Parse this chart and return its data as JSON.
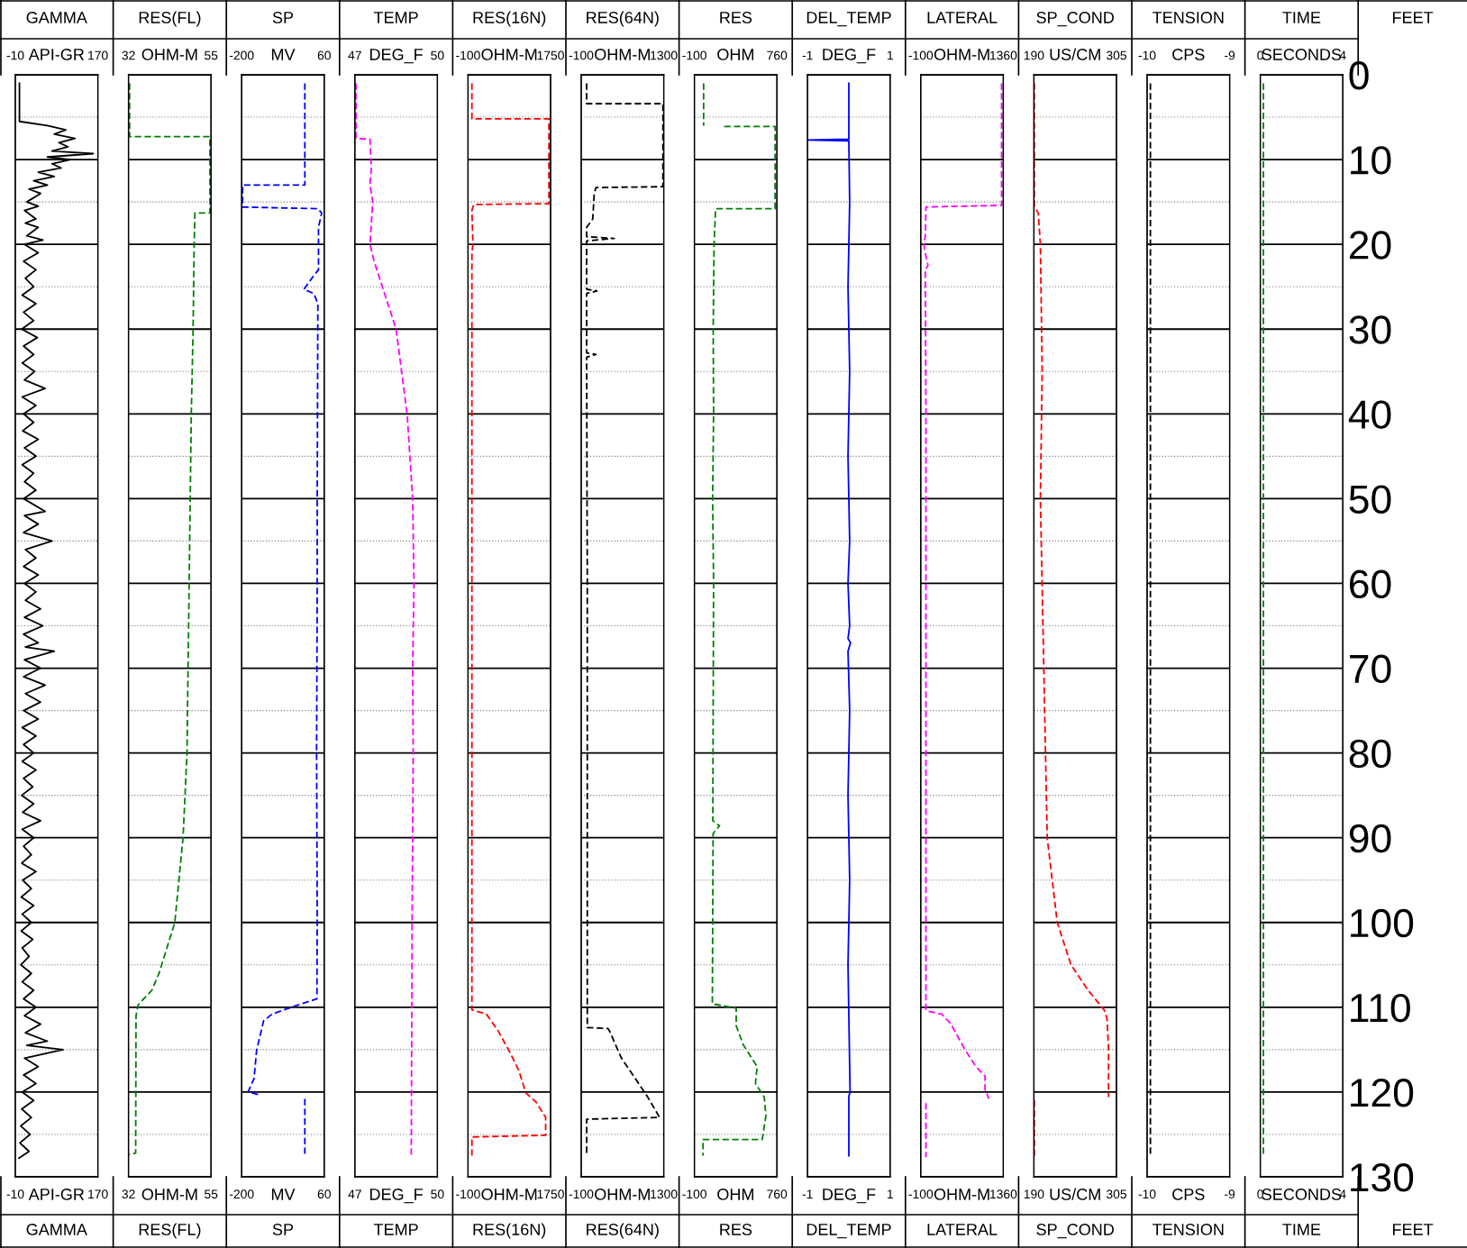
{
  "chart_data": [
    {
      "type": "line",
      "title": "GAMMA",
      "x2label": "API-GR",
      "xlabel": "API-GR",
      "annotations": [
        "GAMMA"
      ],
      "xlim": [
        -10,
        170
      ],
      "xticks": [
        -10,
        170
      ],
      "x2lim": [
        -10,
        170
      ],
      "x2ticks": [
        -10,
        170
      ],
      "ylim": [
        130,
        0
      ],
      "yticks": [
        0,
        {
          "value": 5,
          "label": null
        },
        10,
        {
          "value": 15,
          "label": null
        },
        20,
        {
          "value": 25,
          "label": null
        },
        30,
        {
          "value": 35,
          "label": null
        },
        40,
        {
          "value": 45,
          "label": null
        },
        50,
        {
          "value": 55,
          "label": null
        },
        60,
        {
          "value": 65,
          "label": null
        },
        70,
        {
          "value": 75,
          "label": null
        },
        80,
        {
          "value": 85,
          "label": null
        },
        90,
        {
          "value": 95,
          "label": null
        },
        100,
        {
          "value": 105,
          "label": null
        },
        110,
        {
          "value": 115,
          "label": null
        },
        120,
        {
          "value": 125,
          "label": null
        },
        130
      ],
      "tick_labels": "x",
      "grid": "y",
      "series": [
        {
          "color": "#000000",
          "line_style": "solid",
          "x": [
            -1,
            -1,
            60,
            100,
            75,
            120,
            85,
            105,
            70,
            160,
            60,
            110,
            70,
            90,
            40,
            75,
            30,
            60,
            20,
            45,
            15,
            40,
            10,
            35,
            12,
            40,
            15,
            50,
            10,
            40,
            8,
            35,
            12,
            30,
            5,
            35,
            8,
            30,
            4,
            38,
            8,
            30,
            5,
            32,
            10,
            55,
            5,
            35,
            8,
            30,
            6,
            40,
            10,
            35,
            5,
            30,
            10,
            35,
            8,
            55,
            10,
            40,
            8,
            70,
            12,
            35,
            8,
            40,
            10,
            35,
            12,
            45,
            10,
            50,
            8,
            40,
            12,
            75,
            10,
            45,
            8,
            55,
            12,
            45,
            8,
            40,
            5,
            35,
            8,
            30,
            5,
            35,
            8,
            28,
            4,
            30,
            6,
            45,
            5,
            30,
            8,
            25,
            4,
            35,
            6,
            25,
            3,
            30,
            5,
            25,
            3,
            28,
            5,
            20,
            2,
            25,
            5,
            30,
            8,
            35,
            10,
            45,
            12,
            60,
            15,
            94,
            10,
            40,
            8,
            35,
            5,
            30,
            4,
            25,
            2,
            22,
            0,
            20,
            -2
          ],
          "values": [
            1,
            5.5,
            6,
            6.5,
            7,
            7.5,
            8,
            8.5,
            9,
            9.3,
            9.7,
            10,
            10.5,
            11,
            11.5,
            12,
            12.5,
            13,
            13.5,
            14,
            15,
            15.5,
            16,
            17,
            17.5,
            18,
            19,
            19.5,
            20,
            21,
            22,
            23,
            24,
            25,
            26,
            27,
            28,
            29,
            30,
            31,
            32,
            33,
            34,
            35,
            36,
            37,
            38,
            39,
            40,
            41,
            42,
            43,
            44,
            45,
            46,
            47,
            48,
            49,
            50,
            51.5,
            52,
            53,
            54,
            55,
            56,
            57,
            58,
            59,
            60,
            61,
            62,
            63,
            64,
            65,
            66,
            67,
            67.5,
            68,
            69,
            70,
            71,
            72,
            73,
            74,
            75,
            76,
            77,
            78,
            79,
            80,
            81,
            82,
            83,
            84,
            85,
            86,
            87,
            88,
            89,
            90,
            91,
            92,
            93,
            94,
            95,
            96,
            97,
            98,
            99,
            100,
            101,
            102,
            103,
            104,
            105,
            106,
            107,
            108,
            109,
            110,
            111,
            112,
            113,
            114,
            114.5,
            115,
            116,
            117,
            118,
            119,
            120,
            121,
            122,
            123,
            124,
            125,
            126,
            127,
            127.8
          ]
        }
      ]
    },
    {
      "type": "line",
      "title": "RES(FL)",
      "x2label": "OHM-M",
      "xlabel": "OHM-M",
      "annotations": [
        "RES(FL)"
      ],
      "xlim": [
        32,
        55
      ],
      "xticks": [
        32,
        55
      ],
      "x2lim": [
        32,
        55
      ],
      "x2ticks": [
        32,
        55
      ],
      "ylim": [
        130,
        0
      ],
      "yticks": [
        0,
        {
          "value": 5,
          "label": null
        },
        10,
        {
          "value": 15,
          "label": null
        },
        20,
        {
          "value": 25,
          "label": null
        },
        30,
        {
          "value": 35,
          "label": null
        },
        40,
        {
          "value": 45,
          "label": null
        },
        50,
        {
          "value": 55,
          "label": null
        },
        60,
        {
          "value": 65,
          "label": null
        },
        70,
        {
          "value": 75,
          "label": null
        },
        80,
        {
          "value": 85,
          "label": null
        },
        90,
        {
          "value": 95,
          "label": null
        },
        100,
        {
          "value": 105,
          "label": null
        },
        110,
        {
          "value": 115,
          "label": null
        },
        120,
        {
          "value": 125,
          "label": null
        },
        130
      ],
      "tick_labels": "x",
      "grid": "y",
      "series": [
        {
          "color": "#008000",
          "line_style": "dashed",
          "x": [
            32.3,
            32.3,
            54.7,
            54.7,
            50.5,
            50.3,
            50.0,
            49.5,
            48.6,
            48.3,
            47.2,
            44.9,
            40.5,
            38.5,
            34.7,
            34.1,
            34.0,
            32.0
          ],
          "values": [
            1,
            7.3,
            7.3,
            16.3,
            16.3,
            20,
            30,
            40,
            70,
            80,
            90,
            100,
            106,
            108,
            109.7,
            111,
            127.2,
            127.4
          ]
        }
      ]
    },
    {
      "type": "line",
      "title": "SP",
      "x2label": "MV",
      "xlabel": "MV",
      "annotations": [
        "SP"
      ],
      "xlim": [
        -200,
        60
      ],
      "xticks": [
        -200,
        60
      ],
      "x2lim": [
        -200,
        60
      ],
      "x2ticks": [
        -200,
        60
      ],
      "ylim": [
        130,
        0
      ],
      "yticks": [
        0,
        {
          "value": 5,
          "label": null
        },
        10,
        {
          "value": 15,
          "label": null
        },
        20,
        {
          "value": 25,
          "label": null
        },
        30,
        {
          "value": 35,
          "label": null
        },
        40,
        {
          "value": 45,
          "label": null
        },
        50,
        {
          "value": 55,
          "label": null
        },
        60,
        {
          "value": 65,
          "label": null
        },
        70,
        {
          "value": 75,
          "label": null
        },
        80,
        {
          "value": 85,
          "label": null
        },
        90,
        {
          "value": 95,
          "label": null
        },
        100,
        {
          "value": 105,
          "label": null
        },
        110,
        {
          "value": 115,
          "label": null
        },
        120,
        {
          "value": 125,
          "label": null
        },
        130
      ],
      "tick_labels": "x",
      "grid": "y",
      "series": [
        {
          "color": "#0000ff",
          "line_style": "dashed",
          "x": [
            -1,
            -1,
            -197,
            -197,
            39,
            52,
            42,
            42,
            27,
            -4,
            27,
            40,
            38,
            38,
            36,
            38,
            37,
            -28,
            -104,
            -131,
            -153,
            -161,
            -180,
            -148,
            null,
            -1,
            -1
          ],
          "values": [
            1,
            13.0,
            13.0,
            15.6,
            15.8,
            16.3,
            18,
            23,
            23.7,
            25.3,
            25.8,
            27,
            50,
            60,
            80,
            100,
            109,
            109.8,
            110.8,
            111.6,
            115.1,
            118.4,
            120,
            120.3,
            null,
            120.8,
            127.3
          ]
        }
      ]
    },
    {
      "type": "line",
      "title": "TEMP",
      "x2label": "DEG_F",
      "xlabel": "DEG_F",
      "annotations": [
        "TEMP"
      ],
      "xlim": [
        47,
        50
      ],
      "xticks": [
        47,
        50
      ],
      "x2lim": [
        47,
        50
      ],
      "x2ticks": [
        47,
        50
      ],
      "ylim": [
        130,
        0
      ],
      "yticks": [
        0,
        {
          "value": 5,
          "label": null
        },
        10,
        {
          "value": 15,
          "label": null
        },
        20,
        {
          "value": 25,
          "label": null
        },
        30,
        {
          "value": 35,
          "label": null
        },
        40,
        {
          "value": 45,
          "label": null
        },
        50,
        {
          "value": 55,
          "label": null
        },
        60,
        {
          "value": 65,
          "label": null
        },
        70,
        {
          "value": 75,
          "label": null
        },
        80,
        {
          "value": 85,
          "label": null
        },
        90,
        {
          "value": 95,
          "label": null
        },
        100,
        {
          "value": 105,
          "label": null
        },
        110,
        {
          "value": 115,
          "label": null
        },
        120,
        {
          "value": 125,
          "label": null
        },
        130
      ],
      "tick_labels": "x",
      "grid": "y",
      "series": [
        {
          "color": "#ff00ff",
          "line_style": "dashed",
          "x": [
            47.04,
            47.04,
            47.55,
            47.6,
            47.55,
            47.65,
            47.55,
            47.7,
            48.0,
            48.3,
            48.5,
            48.7,
            48.9,
            49.0,
            49.1,
            49.15,
            49.1,
            49.12,
            49.1,
            49.08,
            49.07,
            49.05
          ],
          "values": [
            1,
            7.5,
            7.6,
            11,
            13,
            15,
            20,
            22,
            25,
            28,
            30,
            35,
            40,
            45,
            50,
            60,
            70,
            80,
            90,
            100,
            110,
            127.5
          ]
        }
      ]
    },
    {
      "type": "line",
      "title": "RES(16N)",
      "x2label": "OHM-M",
      "xlabel": "OHM-M",
      "annotations": [
        "RES(16N)"
      ],
      "xlim": [
        -100,
        1750
      ],
      "xticks": [
        -100,
        1750
      ],
      "x2lim": [
        -100,
        1750
      ],
      "x2ticks": [
        -100,
        1750
      ],
      "ylim": [
        130,
        0
      ],
      "yticks": [
        0,
        {
          "value": 5,
          "label": null
        },
        10,
        {
          "value": 15,
          "label": null
        },
        20,
        {
          "value": 25,
          "label": null
        },
        30,
        {
          "value": 35,
          "label": null
        },
        40,
        {
          "value": 45,
          "label": null
        },
        50,
        {
          "value": 55,
          "label": null
        },
        60,
        {
          "value": 65,
          "label": null
        },
        70,
        {
          "value": 75,
          "label": null
        },
        80,
        {
          "value": 85,
          "label": null
        },
        90,
        {
          "value": 95,
          "label": null
        },
        100,
        {
          "value": 105,
          "label": null
        },
        110,
        {
          "value": 115,
          "label": null
        },
        120,
        {
          "value": 125,
          "label": null
        },
        130
      ],
      "tick_labels": "x",
      "grid": "y",
      "series": [
        {
          "color": "#ff0000",
          "line_style": "dashed",
          "x": [
            -13,
            -13,
            1713,
            1713,
            26,
            -13,
            10,
            -13,
            -13,
            -13,
            311,
            577,
            847,
            1042,
            1195,
            1427,
            1640,
            1640,
            -13,
            -13
          ],
          "values": [
            1,
            5.2,
            5.2,
            15.2,
            15.3,
            16,
            20,
            21,
            60,
            110.3,
            110.8,
            112.8,
            115.4,
            117.5,
            120.1,
            121.2,
            123,
            125.1,
            125.3,
            127.5
          ]
        }
      ]
    },
    {
      "type": "line",
      "title": "RES(64N)",
      "x2label": "OHM-M",
      "xlabel": "OHM-M",
      "annotations": [
        "RES(64N)"
      ],
      "xlim": [
        -100,
        1300
      ],
      "xticks": [
        -100,
        1300
      ],
      "x2lim": [
        -100,
        1300
      ],
      "x2ticks": [
        -100,
        1300
      ],
      "ylim": [
        130,
        0
      ],
      "yticks": [
        0,
        {
          "value": 5,
          "label": null
        },
        10,
        {
          "value": 15,
          "label": null
        },
        20,
        {
          "value": 25,
          "label": null
        },
        30,
        {
          "value": 35,
          "label": null
        },
        40,
        {
          "value": 45,
          "label": null
        },
        50,
        {
          "value": 55,
          "label": null
        },
        60,
        {
          "value": 65,
          "label": null
        },
        70,
        {
          "value": 75,
          "label": null
        },
        80,
        {
          "value": 85,
          "label": null
        },
        90,
        {
          "value": 95,
          "label": null
        },
        100,
        {
          "value": 105,
          "label": null
        },
        110,
        {
          "value": 115,
          "label": null
        },
        120,
        {
          "value": 125,
          "label": null
        },
        130
      ],
      "tick_labels": "x",
      "grid": "y",
      "series": [
        {
          "color": "#000000",
          "line_style": "dashed",
          "x": [
            -8,
            -8,
            1286,
            1286,
            150,
            121,
            96,
            -8,
            -8,
            460,
            -8,
            -8,
            166,
            -8,
            -8,
            150,
            -8,
            3,
            3,
            355,
            380,
            582,
            818,
            1020,
            1230,
            -8,
            -8
          ],
          "values": [
            1,
            3.4,
            3.4,
            13.2,
            13.3,
            14,
            17,
            18,
            19.1,
            19.3,
            19.6,
            25.3,
            25.5,
            25.8,
            32.8,
            33,
            33.3,
            60,
            112.4,
            112.5,
            112.8,
            116,
            118.4,
            120.5,
            123,
            123.2,
            127.5
          ]
        }
      ]
    },
    {
      "type": "line",
      "title": "RES",
      "x2label": "OHM",
      "xlabel": "OHM",
      "annotations": [
        "RES"
      ],
      "xlim": [
        -100,
        760
      ],
      "xticks": [
        -100,
        760
      ],
      "x2lim": [
        -100,
        760
      ],
      "x2ticks": [
        -100,
        760
      ],
      "ylim": [
        130,
        0
      ],
      "yticks": [
        0,
        {
          "value": 5,
          "label": null
        },
        10,
        {
          "value": 15,
          "label": null
        },
        20,
        {
          "value": 25,
          "label": null
        },
        30,
        {
          "value": 35,
          "label": null
        },
        40,
        {
          "value": 45,
          "label": null
        },
        50,
        {
          "value": 55,
          "label": null
        },
        60,
        {
          "value": 65,
          "label": null
        },
        70,
        {
          "value": 75,
          "label": null
        },
        80,
        {
          "value": 85,
          "label": null
        },
        90,
        {
          "value": 95,
          "label": null
        },
        100,
        {
          "value": 105,
          "label": null
        },
        110,
        {
          "value": 115,
          "label": null
        },
        120,
        {
          "value": 125,
          "label": null
        },
        130
      ],
      "tick_labels": "x",
      "grid": "y",
      "series": [
        {
          "color": "#008000",
          "line_style": "dashed",
          "x": [
            -4,
            -4,
            null,
            210,
            741,
            741,
            121,
            105,
            96,
            100,
            90,
            100,
            92,
            162,
            95,
            87,
            336,
            336,
            408,
            554,
            536,
            628,
            645,
            607,
            -10,
            -10
          ],
          "values": [
            1,
            6.0,
            null,
            6.1,
            6.1,
            15.8,
            15.8,
            20,
            30,
            40,
            50,
            60,
            88,
            88.6,
            89.5,
            109.6,
            110.1,
            112.2,
            114.4,
            117,
            119,
            120.6,
            122.8,
            125.6,
            125.6,
            127.5
          ]
        }
      ]
    },
    {
      "type": "line",
      "title": "DEL_TEMP",
      "x2label": "DEG_F",
      "xlabel": "DEG_F",
      "annotations": [
        "DEL_TEMP"
      ],
      "xlim": [
        -1,
        1
      ],
      "xticks": [
        -1,
        1
      ],
      "x2lim": [
        -1,
        1
      ],
      "x2ticks": [
        -1,
        1
      ],
      "ylim": [
        130,
        0
      ],
      "yticks": [
        0,
        {
          "value": 5,
          "label": null
        },
        10,
        {
          "value": 15,
          "label": null
        },
        20,
        {
          "value": 25,
          "label": null
        },
        30,
        {
          "value": 35,
          "label": null
        },
        40,
        {
          "value": 45,
          "label": null
        },
        50,
        {
          "value": 55,
          "label": null
        },
        60,
        {
          "value": 65,
          "label": null
        },
        70,
        {
          "value": 75,
          "label": null
        },
        80,
        {
          "value": 85,
          "label": null
        },
        90,
        {
          "value": 95,
          "label": null
        },
        100,
        {
          "value": 105,
          "label": null
        },
        110,
        {
          "value": 115,
          "label": null
        },
        120,
        {
          "value": 125,
          "label": null
        },
        130
      ],
      "tick_labels": "x",
      "grid": "y",
      "series": [
        {
          "color": "#0000ff",
          "line_style": "solid",
          "x": [
            0,
            0,
            -1,
            0,
            0.02,
            -0.02,
            0.02,
            -0.02,
            0.02,
            -0.02,
            0.02,
            -0.02,
            0.04,
            -0.02,
            0.02,
            -0.02,
            0.02,
            -0.02,
            0.03,
            0,
            0
          ],
          "values": [
            1,
            7.6,
            7.7,
            7.8,
            15,
            25,
            35,
            45,
            55,
            60,
            65,
            66.5,
            67,
            68,
            75,
            85,
            95,
            105,
            120,
            120.5,
            127.5
          ]
        }
      ]
    },
    {
      "type": "line",
      "title": "LATERAL",
      "x2label": "OHM-M",
      "xlabel": "OHM-M",
      "annotations": [
        "LATERAL"
      ],
      "xlim": [
        -100,
        1360
      ],
      "xticks": [
        -100,
        1360
      ],
      "x2lim": [
        -100,
        1360
      ],
      "x2ticks": [
        -100,
        1360
      ],
      "ylim": [
        130,
        0
      ],
      "yticks": [
        0,
        {
          "value": 5,
          "label": null
        },
        10,
        {
          "value": 15,
          "label": null
        },
        20,
        {
          "value": 25,
          "label": null
        },
        30,
        {
          "value": 35,
          "label": null
        },
        40,
        {
          "value": 45,
          "label": null
        },
        50,
        {
          "value": 55,
          "label": null
        },
        60,
        {
          "value": 65,
          "label": null
        },
        70,
        {
          "value": 75,
          "label": null
        },
        80,
        {
          "value": 85,
          "label": null
        },
        90,
        {
          "value": 95,
          "label": null
        },
        100,
        {
          "value": 105,
          "label": null
        },
        110,
        {
          "value": 115,
          "label": null
        },
        120,
        {
          "value": 125,
          "label": null
        },
        130
      ],
      "tick_labels": "x",
      "grid": "y",
      "series": [
        {
          "color": "#ff00ff",
          "line_style": "dashed",
          "x": [
            1330,
            1330,
            -8,
            -20,
            -45,
            -20,
            28,
            -20,
            -8,
            -8,
            270,
            427,
            692,
            876,
            1037,
            1037,
            1106,
            null,
            -8,
            -8
          ],
          "values": [
            1,
            15.4,
            15.6,
            19,
            20,
            21,
            22.5,
            23,
            40,
            110.4,
            110.8,
            111.9,
            115.1,
            117,
            118.1,
            119.7,
            120.8,
            null,
            121.3,
            127.7
          ]
        }
      ]
    },
    {
      "type": "line",
      "title": "SP_COND",
      "x2label": "US/CM",
      "xlabel": "US/CM",
      "annotations": [
        "SP_COND"
      ],
      "xlim": [
        190,
        305
      ],
      "xticks": [
        190,
        305
      ],
      "x2lim": [
        190,
        305
      ],
      "x2ticks": [
        190,
        305
      ],
      "ylim": [
        130,
        0
      ],
      "yticks": [
        0,
        {
          "value": 5,
          "label": null
        },
        10,
        {
          "value": 15,
          "label": null
        },
        20,
        {
          "value": 25,
          "label": null
        },
        30,
        {
          "value": 35,
          "label": null
        },
        40,
        {
          "value": 45,
          "label": null
        },
        50,
        {
          "value": 55,
          "label": null
        },
        60,
        {
          "value": 65,
          "label": null
        },
        70,
        {
          "value": 75,
          "label": null
        },
        80,
        {
          "value": 85,
          "label": null
        },
        90,
        {
          "value": 95,
          "label": null
        },
        100,
        {
          "value": 105,
          "label": null
        },
        110,
        {
          "value": 115,
          "label": null
        },
        120,
        {
          "value": 125,
          "label": null
        },
        130
      ],
      "tick_labels": "x",
      "grid": "y",
      "series": [
        {
          "color": "#ff0000",
          "line_style": "dashed",
          "x": [
            190.5,
            190.5,
            196,
            199,
            201.5,
            199,
            208.5,
            222.5,
            241.7,
            265.5,
            287.7,
            291.8,
            294,
            294,
            null,
            190.5,
            190.5
          ],
          "values": [
            1,
            15.5,
            16.3,
            20,
            35,
            50,
            90,
            100,
            105,
            108,
            110.3,
            111.3,
            115,
            120.6,
            null,
            121,
            127.5
          ]
        }
      ]
    },
    {
      "type": "line",
      "title": "TENSION",
      "x2label": "CPS",
      "xlabel": "CPS",
      "annotations": [
        "TENSION"
      ],
      "xlim": [
        -10,
        -9
      ],
      "xticks": [
        -10,
        -9
      ],
      "x2lim": [
        -10,
        -9
      ],
      "x2ticks": [
        -10,
        -9
      ],
      "ylim": [
        130,
        0
      ],
      "yticks": [
        0,
        {
          "value": 5,
          "label": null
        },
        10,
        {
          "value": 15,
          "label": null
        },
        20,
        {
          "value": 25,
          "label": null
        },
        30,
        {
          "value": 35,
          "label": null
        },
        40,
        {
          "value": 45,
          "label": null
        },
        50,
        {
          "value": 55,
          "label": null
        },
        60,
        {
          "value": 65,
          "label": null
        },
        70,
        {
          "value": 75,
          "label": null
        },
        80,
        {
          "value": 85,
          "label": null
        },
        90,
        {
          "value": 95,
          "label": null
        },
        100,
        {
          "value": 105,
          "label": null
        },
        110,
        {
          "value": 115,
          "label": null
        },
        120,
        {
          "value": 125,
          "label": null
        },
        130
      ],
      "tick_labels": "x",
      "grid": "y",
      "series": [
        {
          "color": "#000000",
          "line_style": "dashed",
          "x": [
            -9.96,
            -9.96
          ],
          "values": [
            1,
            127.5
          ]
        }
      ]
    },
    {
      "type": "line",
      "title": "TIME",
      "x2label": "SECONDS",
      "xlabel": "SECONDS",
      "ylabel": "FEET",
      "annotations": [
        "TIME",
        "FEET"
      ],
      "xlim": [
        0,
        4
      ],
      "xticks": [
        0,
        4
      ],
      "x2lim": [
        0,
        4
      ],
      "x2ticks": [
        0,
        4
      ],
      "ylim": [
        130,
        0
      ],
      "yticks": [
        0,
        {
          "value": 5,
          "label": null
        },
        10,
        {
          "value": 15,
          "label": null
        },
        20,
        {
          "value": 25,
          "label": null
        },
        30,
        {
          "value": 35,
          "label": null
        },
        40,
        {
          "value": 45,
          "label": null
        },
        50,
        {
          "value": 55,
          "label": null
        },
        60,
        {
          "value": 65,
          "label": null
        },
        70,
        {
          "value": 75,
          "label": null
        },
        80,
        {
          "value": 85,
          "label": null
        },
        90,
        {
          "value": 95,
          "label": null
        },
        100,
        {
          "value": 105,
          "label": null
        },
        110,
        {
          "value": 115,
          "label": null
        },
        120,
        {
          "value": 125,
          "label": null
        },
        130
      ],
      "grid": "y",
      "series": [
        {
          "color": "#008000",
          "line_style": "dashed",
          "x": [
            0.15,
            0.15
          ],
          "values": [
            1,
            127.5
          ]
        }
      ]
    }
  ]
}
